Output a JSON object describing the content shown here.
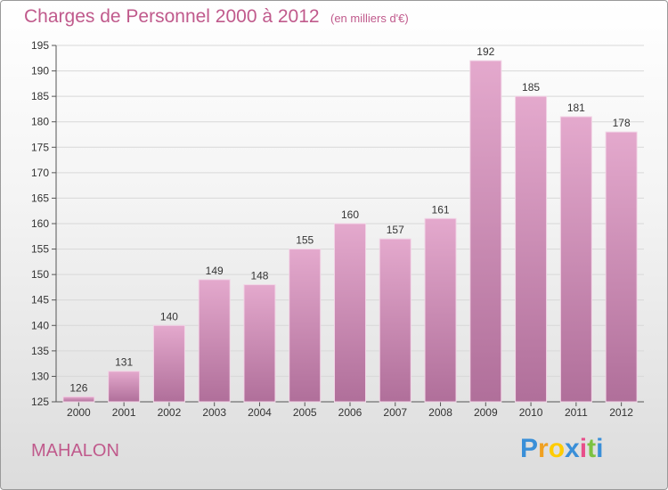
{
  "header": {
    "title": "Charges de Personnel 2000 à 2012",
    "subtitle": "(en milliers d'€)"
  },
  "footer": {
    "commune": "MAHALON",
    "logo_letters": [
      "P",
      "r",
      "o",
      "x",
      "i",
      "t",
      "i"
    ],
    "logo_colors": [
      "#3a8fd8",
      "#f0a020",
      "#ffcc00",
      "#3a8fd8",
      "#e84e8a",
      "#7cc242",
      "#3a8fd8"
    ]
  },
  "colors": {
    "bar_top": "#e4a9cd",
    "bar_bottom": "#b06f9a",
    "text_accent": "#c05a8c"
  },
  "chart_data": {
    "type": "bar",
    "title": "Charges de Personnel 2000 à 2012",
    "subtitle": "(en milliers d'€)",
    "categories": [
      "2000",
      "2001",
      "2002",
      "2003",
      "2004",
      "2005",
      "2006",
      "2007",
      "2008",
      "2009",
      "2010",
      "2011",
      "2012"
    ],
    "values": [
      126,
      131,
      140,
      149,
      148,
      155,
      160,
      157,
      161,
      192,
      185,
      181,
      178
    ],
    "ylim": [
      125,
      195
    ],
    "yticks": [
      125,
      130,
      135,
      140,
      145,
      150,
      155,
      160,
      165,
      170,
      175,
      180,
      185,
      190,
      195
    ],
    "grid": true,
    "legend": "none"
  }
}
